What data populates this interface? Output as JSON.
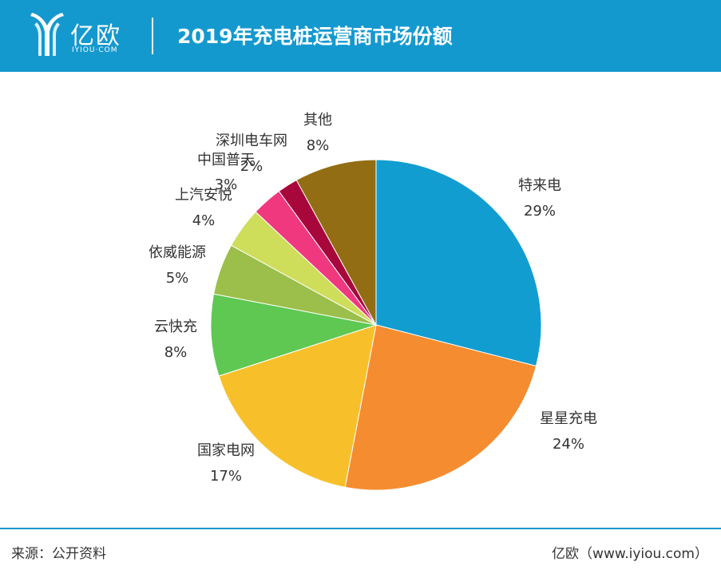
{
  "header": {
    "logo_text": "亿欧",
    "logo_sub": "IYIOU·COM",
    "title": "2019年充电桩运营商市场份额",
    "bg_color": "#1499cf"
  },
  "chart_data": {
    "type": "pie",
    "title": "2019年充电桩运营商市场份额",
    "slices": [
      {
        "label": "特来电",
        "value": 29,
        "value_label": "29%",
        "color": "#129dd0"
      },
      {
        "label": "星星充电",
        "value": 24,
        "value_label": "24%",
        "color": "#f58c2f"
      },
      {
        "label": "国家电网",
        "value": 17,
        "value_label": "17%",
        "color": "#f7c02b"
      },
      {
        "label": "云快充",
        "value": 8,
        "value_label": "8%",
        "color": "#5ec852"
      },
      {
        "label": "依威能源",
        "value": 5,
        "value_label": "5%",
        "color": "#9bbf4a"
      },
      {
        "label": "上汽安悦",
        "value": 4,
        "value_label": "4%",
        "color": "#cedd5a"
      },
      {
        "label": "中国普天",
        "value": 3,
        "value_label": "3%",
        "color": "#f0387f"
      },
      {
        "label": "深圳电车网",
        "value": 2,
        "value_label": "2%",
        "color": "#a8073b"
      },
      {
        "label": "其他",
        "value": 8,
        "value_label": "8%",
        "color": "#936d13"
      }
    ],
    "start_angle_deg": 0,
    "direction": "clockwise",
    "legend": "none",
    "label_placement": "outside"
  },
  "footer": {
    "source": "来源：公开资料",
    "credit": "亿欧（www.iyiou.com）"
  }
}
